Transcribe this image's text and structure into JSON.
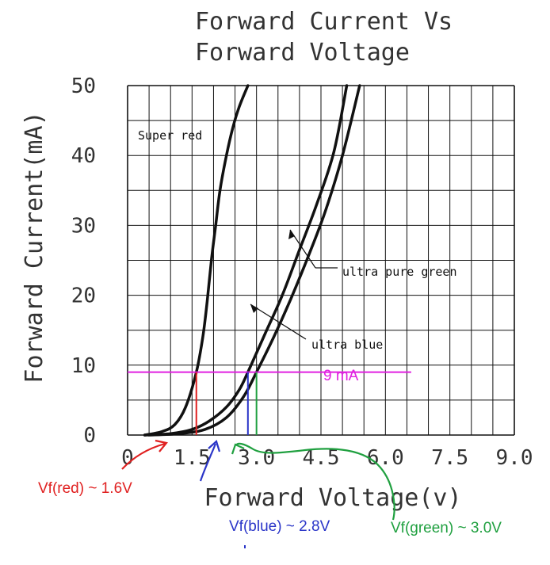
{
  "chart_data": {
    "type": "line",
    "title_lines": [
      "Forward Current Vs",
      "Forward Voltage"
    ],
    "xlabel": "Forward Voltage(v)",
    "ylabel": "Forward Current(mA)",
    "xlim": [
      0,
      9.0
    ],
    "ylim": [
      0,
      50
    ],
    "x_ticks": [
      "0",
      "1.5",
      "3.0",
      "4.5",
      "6.0",
      "7.5",
      "9.0"
    ],
    "y_ticks": [
      "0",
      "10",
      "20",
      "30",
      "40",
      "50"
    ],
    "grid": true,
    "series": [
      {
        "name": "Super red",
        "x": [
          0.4,
          0.8,
          1.1,
          1.35,
          1.6,
          1.75,
          1.85,
          1.95,
          2.05,
          2.15,
          2.3,
          2.45,
          2.6,
          2.8
        ],
        "y": [
          0.0,
          0.5,
          1.5,
          4.0,
          9.0,
          14.0,
          19.0,
          25.0,
          30.0,
          35.0,
          40.0,
          44.0,
          47.0,
          50.0
        ]
      },
      {
        "name": "ultra blue",
        "x": [
          0.4,
          1.0,
          1.5,
          1.9,
          2.3,
          2.6,
          2.8,
          3.2,
          3.6,
          4.0,
          4.4,
          4.8,
          5.1
        ],
        "y": [
          0.0,
          0.2,
          0.8,
          2.0,
          4.0,
          6.5,
          9.0,
          14.5,
          20.0,
          26.5,
          33.0,
          40.5,
          50.0
        ]
      },
      {
        "name": "ultra pure green",
        "x": [
          0.5,
          1.2,
          1.8,
          2.3,
          2.7,
          3.0,
          3.4,
          3.8,
          4.2,
          4.6,
          5.0,
          5.4
        ],
        "y": [
          0.0,
          0.2,
          0.8,
          2.5,
          5.5,
          9.0,
          14.0,
          19.5,
          25.5,
          32.0,
          40.0,
          50.0
        ]
      }
    ],
    "series_labels": [
      "Super red",
      "ultra pure green",
      "ultra blue"
    ],
    "reference_line": {
      "label": "9 mA",
      "y": 9,
      "x_start": 0,
      "x_end": 6.6,
      "color": "#e020e0"
    },
    "forward_voltage_markers": [
      {
        "label": "Vf(red) ~ 1.6V",
        "x": 1.6,
        "color": "#e02020"
      },
      {
        "label": "Vf(blue) ~ 2.8V",
        "x": 2.8,
        "color": "#2a35c8"
      },
      {
        "label": "Vf(green) ~ 3.0V",
        "x": 3.0,
        "color": "#20a040"
      }
    ]
  }
}
